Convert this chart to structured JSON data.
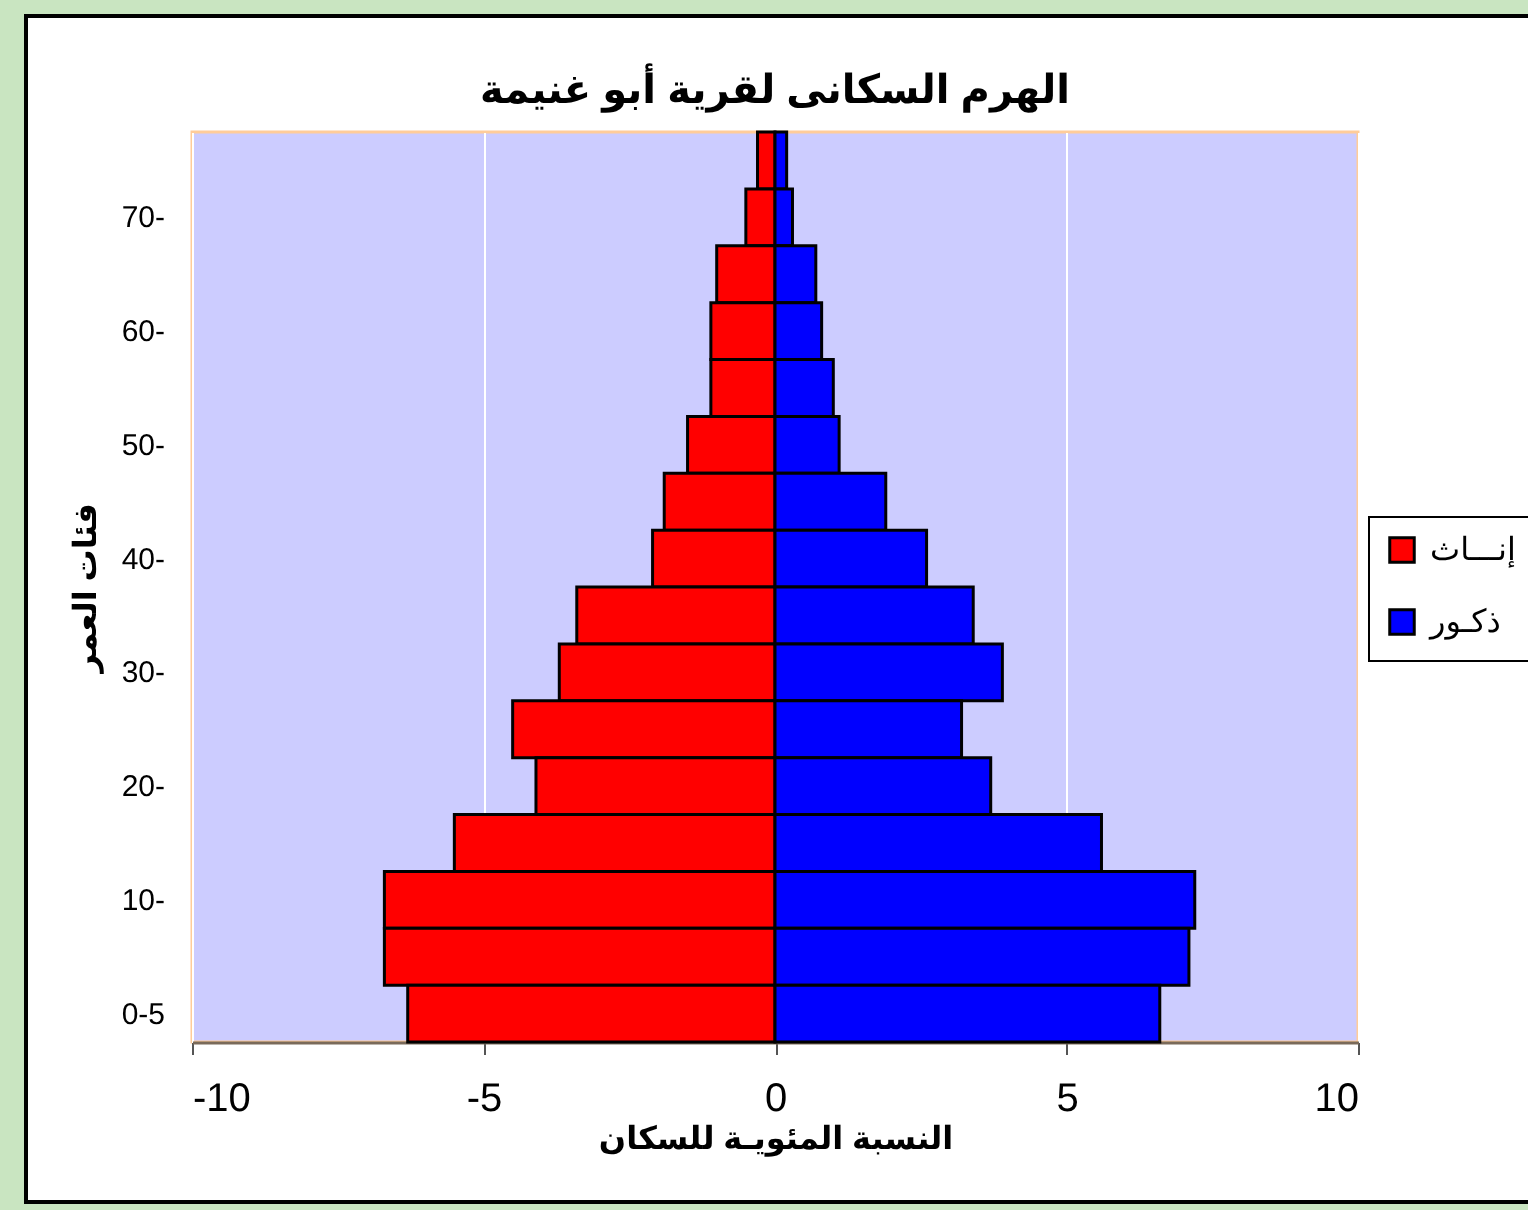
{
  "chart_data": {
    "type": "bar",
    "orientation": "horizontal",
    "stacked": true,
    "title": "الهرم السكانى لقرية أبو غنيمة",
    "xlabel": "النسبة المئويـة للسكان",
    "ylabel": "فئات العمر",
    "categories": [
      null,
      "70-",
      null,
      "60-",
      null,
      "50-",
      null,
      "40-",
      null,
      "30-",
      null,
      "20-",
      null,
      "10-",
      null,
      "0-5"
    ],
    "series": [
      {
        "name": "إنـــاث",
        "color": "#ff0000",
        "values": [
          -0.3,
          -0.5,
          -1.0,
          -1.1,
          -1.1,
          -1.5,
          -1.9,
          -2.1,
          -3.4,
          -3.7,
          -4.5,
          -4.1,
          -5.5,
          -6.7,
          -6.7,
          -6.3
        ]
      },
      {
        "name": "ذكـور",
        "color": "#0000ff",
        "values": [
          0.2,
          0.3,
          0.7,
          0.8,
          1.0,
          1.1,
          1.9,
          2.6,
          3.4,
          3.9,
          3.2,
          3.7,
          5.6,
          7.2,
          7.1,
          6.6
        ]
      }
    ],
    "xlim": [
      -10,
      10
    ],
    "xticks": [
      -10,
      -5,
      0,
      5,
      10
    ],
    "grid": "x",
    "legend": "right"
  }
}
